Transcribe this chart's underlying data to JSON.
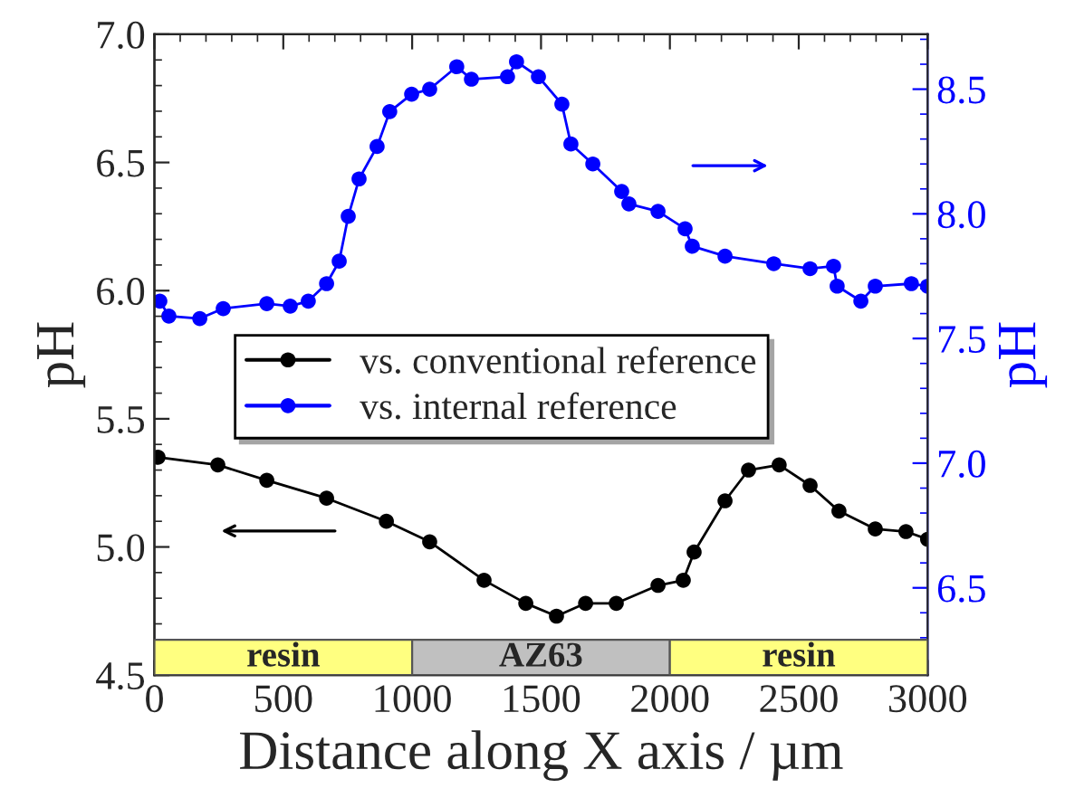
{
  "chart_data": {
    "type": "line",
    "xlabel": "Distance along X axis / µm",
    "ylabel": "pH",
    "y2label": "pH",
    "xlim": [
      0,
      3000
    ],
    "xticks": [
      0,
      500,
      1000,
      1500,
      2000,
      2500,
      3000
    ],
    "ylim": [
      4.5,
      7.0
    ],
    "yticks": [
      4.5,
      {
        "value": 5,
        "label": "5.0"
      },
      5.5,
      {
        "value": 6,
        "label": "6.0"
      },
      6.5,
      {
        "value": 7,
        "label": "7.0"
      }
    ],
    "y2lim": [
      6.15,
      8.72
    ],
    "y2ticks": [
      6.5,
      {
        "value": 7,
        "label": "7.0"
      },
      7.5,
      {
        "value": 8,
        "label": "8.0"
      },
      8.5
    ],
    "marker": "circle",
    "line_style": "solid",
    "legend": "center left",
    "grid": false,
    "series": [
      {
        "name": "vs. conventional reference",
        "color": "#000000",
        "x": [
          14,
          246,
          436,
          668,
          900,
          1068,
          1279,
          1441,
          1560,
          1673,
          1792,
          1954,
          2052,
          2094,
          2214,
          2305,
          2424,
          2544,
          2656,
          2797,
          2916,
          3000
        ],
        "values": [
          5.35,
          5.32,
          5.26,
          5.19,
          5.1,
          5.02,
          4.87,
          4.78,
          4.73,
          4.78,
          4.78,
          4.85,
          4.87,
          4.98,
          5.18,
          5.3,
          5.32,
          5.24,
          5.14,
          5.07,
          5.06,
          5.03
        ]
      },
      {
        "name": "vs. internal reference",
        "color": "#0000ff",
        "axis": "y2",
        "x": [
          21,
          56,
          176,
          267,
          436,
          527,
          597,
          668,
          717,
          752,
          794,
          864,
          913,
          998,
          1068,
          1173,
          1230,
          1370,
          1405,
          1490,
          1581,
          1616,
          1701,
          1813,
          1841,
          1954,
          2059,
          2087,
          2214,
          2403,
          2544,
          2635,
          2649,
          2741,
          2797,
          2937,
          3000
        ],
        "values": [
          7.65,
          7.59,
          7.58,
          7.62,
          7.64,
          7.63,
          7.65,
          7.72,
          7.81,
          7.99,
          8.14,
          8.27,
          8.41,
          8.48,
          8.5,
          8.59,
          8.54,
          8.55,
          8.61,
          8.55,
          8.44,
          8.28,
          8.2,
          8.09,
          8.04,
          8.01,
          7.94,
          7.87,
          7.83,
          7.8,
          7.78,
          7.79,
          7.71,
          7.65,
          7.71,
          7.72,
          7.71
        ]
      }
    ],
    "bands": [
      {
        "axis": "x",
        "from": 0,
        "to": 1000,
        "label": "resin",
        "color": "#ffff80"
      },
      {
        "axis": "x",
        "from": 1000,
        "to": 2000,
        "label": "AZ63",
        "color": "#c0c0c0"
      },
      {
        "axis": "x",
        "from": 2000,
        "to": 3000,
        "label": "resin",
        "color": "#ffff80"
      }
    ]
  }
}
